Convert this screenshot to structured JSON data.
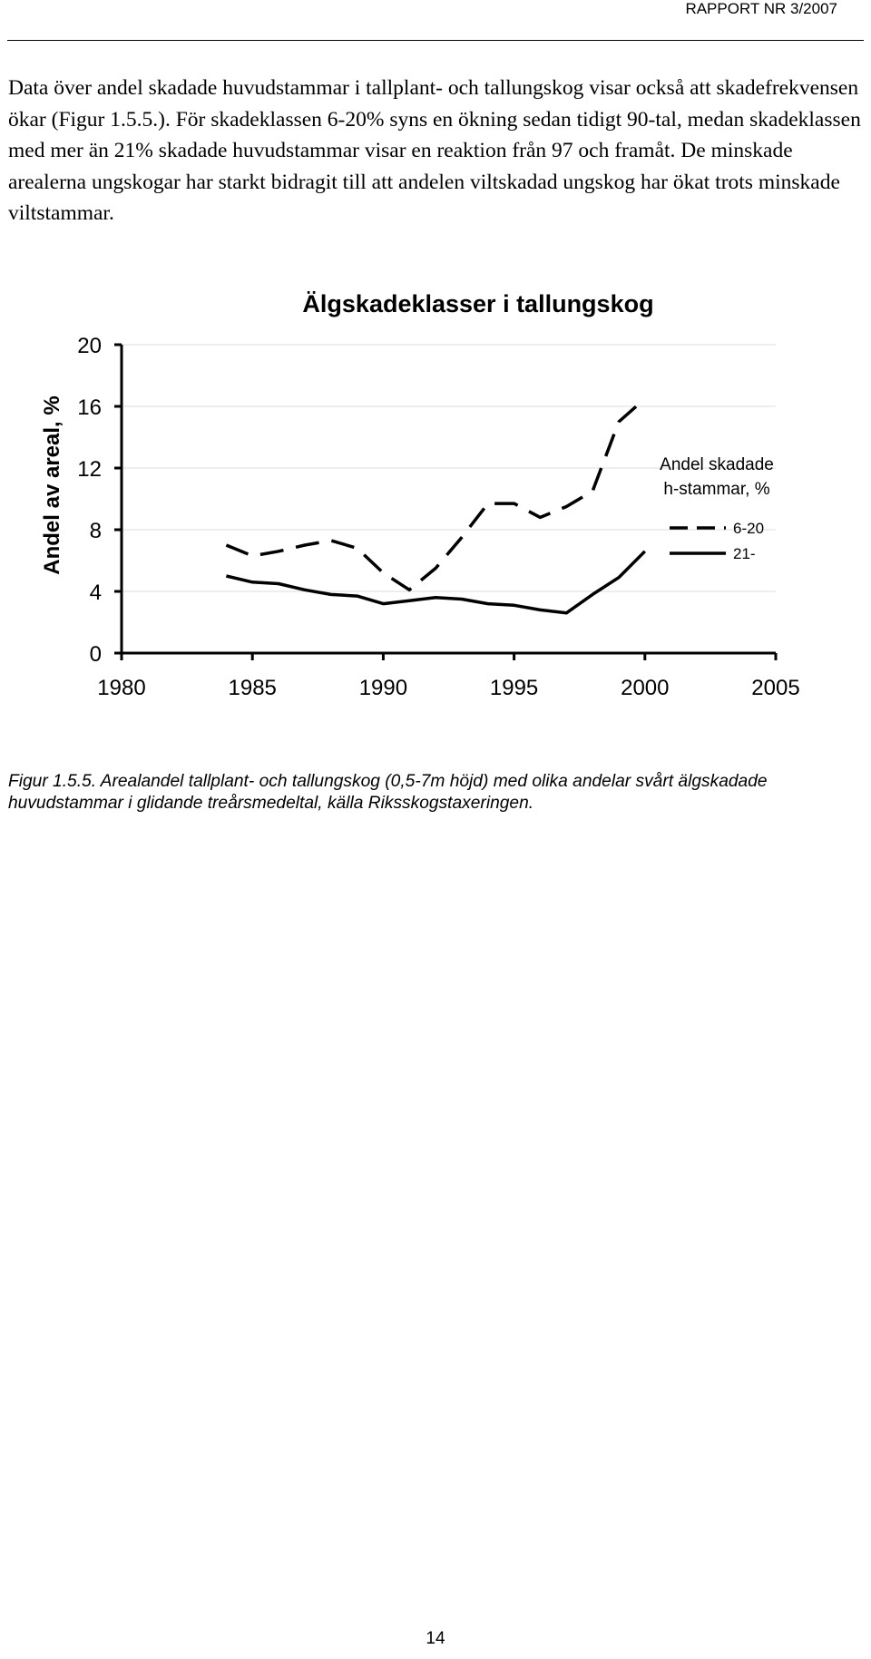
{
  "header": {
    "report_label": "RAPPORT NR 3/2007"
  },
  "body_text": "Data över andel skadade huvudstammar i tallplant- och tallungskog visar också att skadefrekvensen ökar (Figur 1.5.5.). För skadeklassen 6-20% syns en ökning sedan tidigt 90-tal, medan skadeklassen med mer än 21% skadade huvudstammar visar en reaktion från 97 och framåt. De minskade arealerna ungskogar har starkt bidragit till att andelen viltskadad ungskog har ökat trots minskade viltstammar.",
  "chart_data": {
    "type": "line",
    "title": "Älgskadeklasser i tallungskog",
    "xlabel": "",
    "ylabel": "Andel av areal, %",
    "xlim": [
      1980,
      2005
    ],
    "ylim": [
      0,
      20
    ],
    "x_ticks": [
      1980,
      1985,
      1990,
      1995,
      2000,
      2005
    ],
    "y_ticks": [
      0,
      4,
      8,
      12,
      16,
      20
    ],
    "grid": "horizontal",
    "legend_title": "Andel skadade h-stammar, %",
    "legend_position": "right",
    "series": [
      {
        "name": "6-20",
        "style": "dashed",
        "x": [
          1984,
          1985,
          1986,
          1987,
          1988,
          1989,
          1990,
          1991,
          1992,
          1993,
          1994,
          1995,
          1996,
          1997,
          1998,
          1999,
          2000
        ],
        "y": [
          7.0,
          6.3,
          6.6,
          7.0,
          7.3,
          6.8,
          5.2,
          4.1,
          5.5,
          7.5,
          9.7,
          9.7,
          8.8,
          9.5,
          10.5,
          15.0,
          16.5
        ]
      },
      {
        "name": "21-",
        "style": "solid",
        "x": [
          1984,
          1985,
          1986,
          1987,
          1988,
          1989,
          1990,
          1991,
          1992,
          1993,
          1994,
          1995,
          1996,
          1997,
          1998,
          1999,
          2000
        ],
        "y": [
          5.0,
          4.6,
          4.5,
          4.1,
          3.8,
          3.7,
          3.2,
          3.4,
          3.6,
          3.5,
          3.2,
          3.1,
          2.8,
          2.6,
          3.8,
          4.9,
          6.6
        ]
      }
    ]
  },
  "caption": "Figur 1.5.5. Arealandel tallplant- och tallungskog (0,5-7m höjd) med olika andelar svårt älgskadade huvudstammar i glidande treårsmedeltal, källa Riksskogstaxeringen.",
  "page_number": "14"
}
